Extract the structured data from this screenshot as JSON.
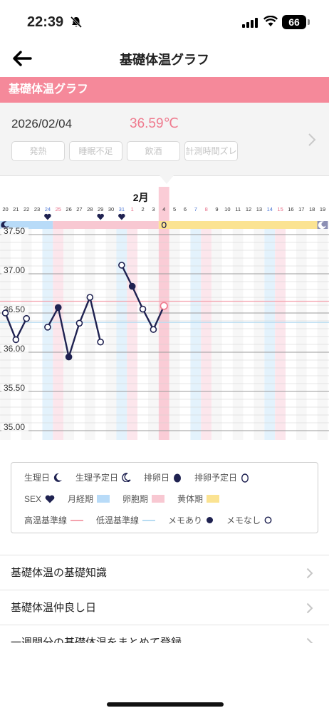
{
  "status": {
    "time": "22:39",
    "battery": "66"
  },
  "nav": {
    "title": "基礎体温グラフ"
  },
  "section": {
    "title": "基礎体温グラフ"
  },
  "detail": {
    "date": "2026/02/04",
    "temperature": "36.59℃",
    "tags": [
      "発熱",
      "睡眠不足",
      "飲酒",
      "計測時間ズレ"
    ]
  },
  "colors": {
    "accent": "#f5899a",
    "menstruation": "#b8dbf8",
    "follicular": "#f8c8d2",
    "luteal": "#fbe392",
    "line": "#1f2251",
    "high_line": "#f4a3ae",
    "low_line": "#b8dcf2"
  },
  "chart_data": {
    "type": "line",
    "month_label": "2月",
    "days": [
      "20",
      "21",
      "22",
      "23",
      "24",
      "25",
      "26",
      "27",
      "28",
      "29",
      "30",
      "31",
      "1",
      "2",
      "3",
      "4",
      "5",
      "6",
      "7",
      "8",
      "9",
      "10",
      "11",
      "12",
      "13",
      "14",
      "15",
      "16",
      "17",
      "18",
      "19"
    ],
    "y_ticks": [
      "37.50",
      "37.00",
      "36.50",
      "36.00",
      "35.50",
      "35.00"
    ],
    "ylim": [
      34.95,
      37.55
    ],
    "series": [
      {
        "x": [
          "20",
          "21",
          "22"
        ],
        "values": [
          36.5,
          36.16,
          36.43
        ],
        "memo": [
          false,
          false,
          false
        ]
      },
      {
        "x": [
          "24",
          "25",
          "26",
          "27",
          "28",
          "29"
        ],
        "values": [
          36.32,
          36.57,
          35.94,
          36.37,
          36.7,
          36.13
        ],
        "memo": [
          false,
          true,
          true,
          false,
          false,
          false
        ]
      },
      {
        "x": [
          "31",
          "1",
          "2",
          "3",
          "4"
        ],
        "values": [
          37.11,
          36.84,
          36.55,
          36.29,
          36.59
        ],
        "memo": [
          false,
          true,
          false,
          false,
          false
        ]
      }
    ],
    "selected_day": "4",
    "high_baseline": 36.65,
    "low_baseline": 36.38,
    "phases": [
      {
        "name": "月経期",
        "from": "20",
        "to": "24"
      },
      {
        "name": "卵胞期",
        "from": "25",
        "to": "3"
      },
      {
        "name": "黄体期",
        "from": "4",
        "to": "18"
      }
    ],
    "sex_days": [
      "24",
      "29",
      "31"
    ],
    "menstruation_day": "20",
    "predicted_menstruation_day": "19",
    "predicted_ovulation_day": "4"
  },
  "legend": {
    "menstruation": "生理日",
    "predicted_menstruation": "生理予定日",
    "ovulation": "排卵日",
    "predicted_ovulation": "排卵予定日",
    "sex": "SEX",
    "menstrual_phase": "月経期",
    "follicular_phase": "卵胞期",
    "luteal_phase": "黄体期",
    "high_baseline": "高温基準線",
    "low_baseline": "低温基準線",
    "memo_on": "メモあり",
    "memo_off": "メモなし"
  },
  "menu": [
    "基礎体温の基礎知識",
    "基礎体温仲良し日",
    "一週間分の基礎体温をまとめて登録"
  ]
}
